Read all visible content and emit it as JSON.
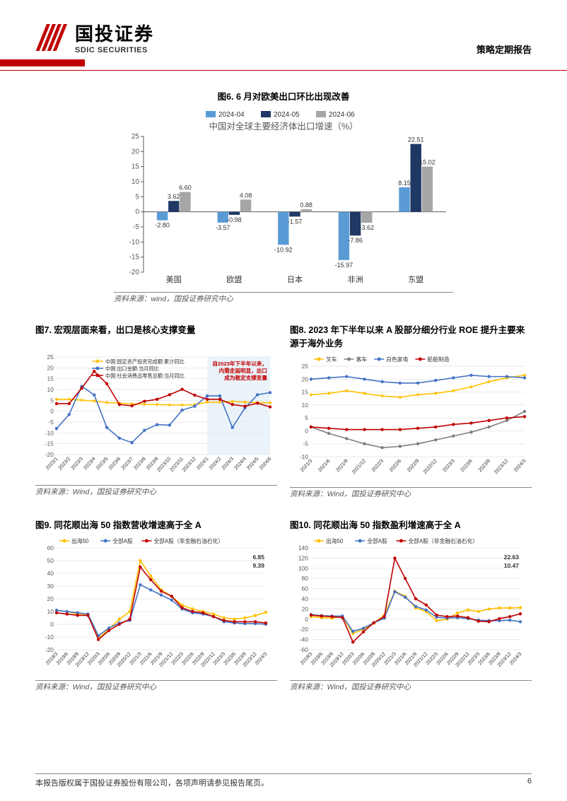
{
  "header": {
    "logo_cn": "国投证券",
    "logo_en": "SDIC SECURITIES",
    "logo_color": "#c00000",
    "report_type": "策略定期报告"
  },
  "fig6": {
    "title": "图6. 6 月对欧美出口环比出现改善",
    "subtitle": "中国对全球主要经济体出口增速（%）",
    "type": "bar",
    "legend": [
      "2024-04",
      "2024-05",
      "2024-06"
    ],
    "legend_colors": [
      "#5b9bd5",
      "#1f3864",
      "#a6a6a6"
    ],
    "categories": [
      "美国",
      "欧盟",
      "日本",
      "非洲",
      "东盟"
    ],
    "series": {
      "2024-04": [
        -2.8,
        -3.57,
        -10.92,
        -15.97,
        8.15
      ],
      "2024-05": [
        3.62,
        -0.98,
        -1.57,
        -7.86,
        22.51
      ],
      "2024-06": [
        6.6,
        4.08,
        0.88,
        -3.62,
        15.02
      ]
    },
    "ylim": [
      -20,
      25
    ],
    "ytick_step": 5,
    "axis_color": "#595959",
    "grid": false,
    "source": "资料来源：wind，国投证券研究中心"
  },
  "fig7": {
    "title": "图7. 宏观层面来看，出口是核心支撑变量",
    "type": "line",
    "legend": {
      "s1": {
        "label": "中国:固定资产投资完成额:累计同比",
        "color": "#ffc000",
        "marker": "diamond"
      },
      "s2": {
        "label": "中国:出口金额:当月同比",
        "color": "#4472c4",
        "marker": "circle"
      },
      "s3": {
        "label": "中国:社会消费品零售总额:当月同比",
        "color": "#c00000",
        "marker": "circle"
      }
    },
    "xlabels": [
      "2023/1",
      "2023/2",
      "2023/3",
      "2023/4",
      "2023/5",
      "2023/6",
      "2023/7",
      "2023/8",
      "2023/9",
      "2023/10",
      "2023/11",
      "2023/12",
      "2024/1",
      "2024/2",
      "2024/3",
      "2024/4",
      "2024/5",
      "2024/6"
    ],
    "series": {
      "s1": [
        5.5,
        5.5,
        5.1,
        4.7,
        4.0,
        3.8,
        3.4,
        3.2,
        3.1,
        2.9,
        2.9,
        3.0,
        4.2,
        4.2,
        4.5,
        4.2,
        4.0,
        3.9
      ],
      "s2": [
        -8.0,
        -1.5,
        11.5,
        7.5,
        -7.5,
        -12.4,
        -14.5,
        -8.8,
        -6.2,
        -6.4,
        0.5,
        2.3,
        7.1,
        7.1,
        -7.5,
        1.5,
        7.6,
        8.6
      ],
      "s3": [
        3.5,
        3.5,
        10.6,
        18.4,
        12.7,
        3.1,
        2.5,
        4.6,
        5.5,
        7.6,
        10.1,
        7.4,
        5.5,
        5.5,
        3.1,
        2.3,
        3.7,
        2.0
      ]
    },
    "ylim": [
      -20,
      25
    ],
    "ytick_step": 5,
    "annotation": {
      "text": "自2023年下半年以来，\n内需走弱明显，出口\n成为稳定支撑变量",
      "color": "#c00000",
      "bg": "#deebf7"
    },
    "grid_color": "#e0e0e0",
    "source": "资料来源：Wind，国投证券研究中心"
  },
  "fig8": {
    "title": "图8. 2023 年下半年以来 A 股部分细分行业 ROE 提升主要来源于海外业务",
    "type": "line",
    "legend": {
      "s1": {
        "label": "叉车",
        "color": "#ffc000",
        "marker": "diamond"
      },
      "s2": {
        "label": "客车",
        "color": "#7f7f7f",
        "marker": "circle"
      },
      "s3": {
        "label": "白色家电",
        "color": "#4472c4",
        "marker": "circle"
      },
      "s4": {
        "label": "船舶制造",
        "color": "#c00000",
        "marker": "circle"
      }
    },
    "xlabels": [
      "2021/3",
      "2021/6",
      "2021/9",
      "2021/12",
      "2022/3",
      "2022/6",
      "2022/9",
      "2022/12",
      "2023/3",
      "2023/6",
      "2023/9",
      "2023/12",
      "2024/3"
    ],
    "series": {
      "s1": [
        14,
        14.5,
        15.5,
        14.5,
        13.5,
        13,
        14,
        14.5,
        15.5,
        17,
        19,
        20.5,
        21.5
      ],
      "s2": [
        1.5,
        -1,
        -3,
        -5,
        -6.5,
        -6,
        -5,
        -3.5,
        -2,
        -0.5,
        1.5,
        4,
        7.5
      ],
      "s3": [
        20,
        20.5,
        21,
        20,
        19,
        18.5,
        18.5,
        19.5,
        20.5,
        21.5,
        21,
        21,
        20.5
      ],
      "s4": [
        1.5,
        1,
        0.5,
        0.5,
        0.5,
        0.5,
        1,
        1.5,
        2.5,
        3,
        4,
        5,
        5.5
      ]
    },
    "ylim": [
      -10,
      25
    ],
    "ytick_step": 5,
    "grid_color": "#e0e0e0",
    "source": "资料来源：Wind，国投证券研究中心"
  },
  "fig9": {
    "title": "图9. 同花顺出海 50 指数营收增速高于全 A",
    "type": "line",
    "legend": {
      "s1": {
        "label": "出海50",
        "color": "#ffc000",
        "marker": "circle"
      },
      "s2": {
        "label": "全部A股",
        "color": "#4472c4",
        "marker": "circle"
      },
      "s3": {
        "label": "全部A股（非金融石油石化）",
        "color": "#c00000",
        "marker": "circle"
      }
    },
    "xlabels": [
      "2019/3",
      "2019/6",
      "2019/9",
      "2019/12",
      "2020/3",
      "2020/6",
      "2020/9",
      "2020/12",
      "2021/3",
      "2021/6",
      "2021/9",
      "2021/12",
      "2022/3",
      "2022/6",
      "2022/9",
      "2022/12",
      "2023/3",
      "2023/6",
      "2023/9",
      "2023/12",
      "2024/3"
    ],
    "series": {
      "s1": [
        11,
        10,
        8,
        8,
        -11,
        -4,
        4,
        10,
        50,
        38,
        27,
        22,
        15,
        12,
        10,
        8,
        5,
        4,
        5,
        6.85,
        9.39
      ],
      "s2": [
        11,
        10,
        9,
        8,
        -9,
        -3,
        1,
        3,
        31,
        27,
        23,
        19,
        12,
        9,
        8,
        6,
        2,
        1,
        0.5,
        0.5,
        0
      ],
      "s3": [
        9,
        8,
        7,
        7,
        -12,
        -5,
        0,
        4,
        45,
        35,
        26,
        22,
        13,
        10,
        9,
        6,
        3,
        2,
        2,
        2,
        1
      ]
    },
    "ylim": [
      -20,
      60
    ],
    "ytick_step": 10,
    "end_labels": [
      "6.85",
      "9.39"
    ],
    "grid_color": "#e0e0e0",
    "source": "资料来源：Wind，国投证券研究中心"
  },
  "fig10": {
    "title": "图10. 同花顺出海 50 指数盈利增速高于全 A",
    "type": "line",
    "legend": {
      "s1": {
        "label": "出海50",
        "color": "#ffc000",
        "marker": "circle"
      },
      "s2": {
        "label": "全部A股",
        "color": "#4472c4",
        "marker": "circle"
      },
      "s3": {
        "label": "全部A股（非金融石油石化）",
        "color": "#c00000",
        "marker": "circle"
      }
    },
    "xlabels": [
      "2019/3",
      "2019/6",
      "2019/9",
      "2019/12",
      "2020/3",
      "2020/6",
      "2020/9",
      "2020/12",
      "2021/3",
      "2021/6",
      "2021/9",
      "2021/12",
      "2022/3",
      "2022/6",
      "2022/9",
      "2022/12",
      "2023/3",
      "2023/6",
      "2023/9",
      "2023/12",
      "2024/3"
    ],
    "series": {
      "s1": [
        5,
        3,
        2,
        5,
        -28,
        -20,
        -8,
        8,
        55,
        45,
        22,
        15,
        -3,
        0,
        12,
        18,
        15,
        20,
        22,
        22,
        22.63
      ],
      "s2": [
        9,
        7,
        6,
        6,
        -24,
        -18,
        -7,
        2,
        54,
        43,
        25,
        18,
        4,
        2,
        3,
        1,
        -2,
        -3,
        -3,
        -2,
        -5
      ],
      "s3": [
        8,
        6,
        5,
        3,
        -45,
        -25,
        -7,
        5,
        120,
        80,
        40,
        28,
        8,
        5,
        6,
        3,
        -4,
        -5,
        1,
        5,
        10.47
      ]
    },
    "ylim": [
      -60,
      140
    ],
    "ytick_step": 20,
    "end_labels": [
      "22.63",
      "10.47"
    ],
    "grid_color": "#e0e0e0",
    "source": "资料来源：Wind，国投证券研究中心"
  },
  "footer": {
    "text": "本报告版权属于国投证券股份有限公司，各项声明请参见报告尾页。",
    "page": "6"
  }
}
